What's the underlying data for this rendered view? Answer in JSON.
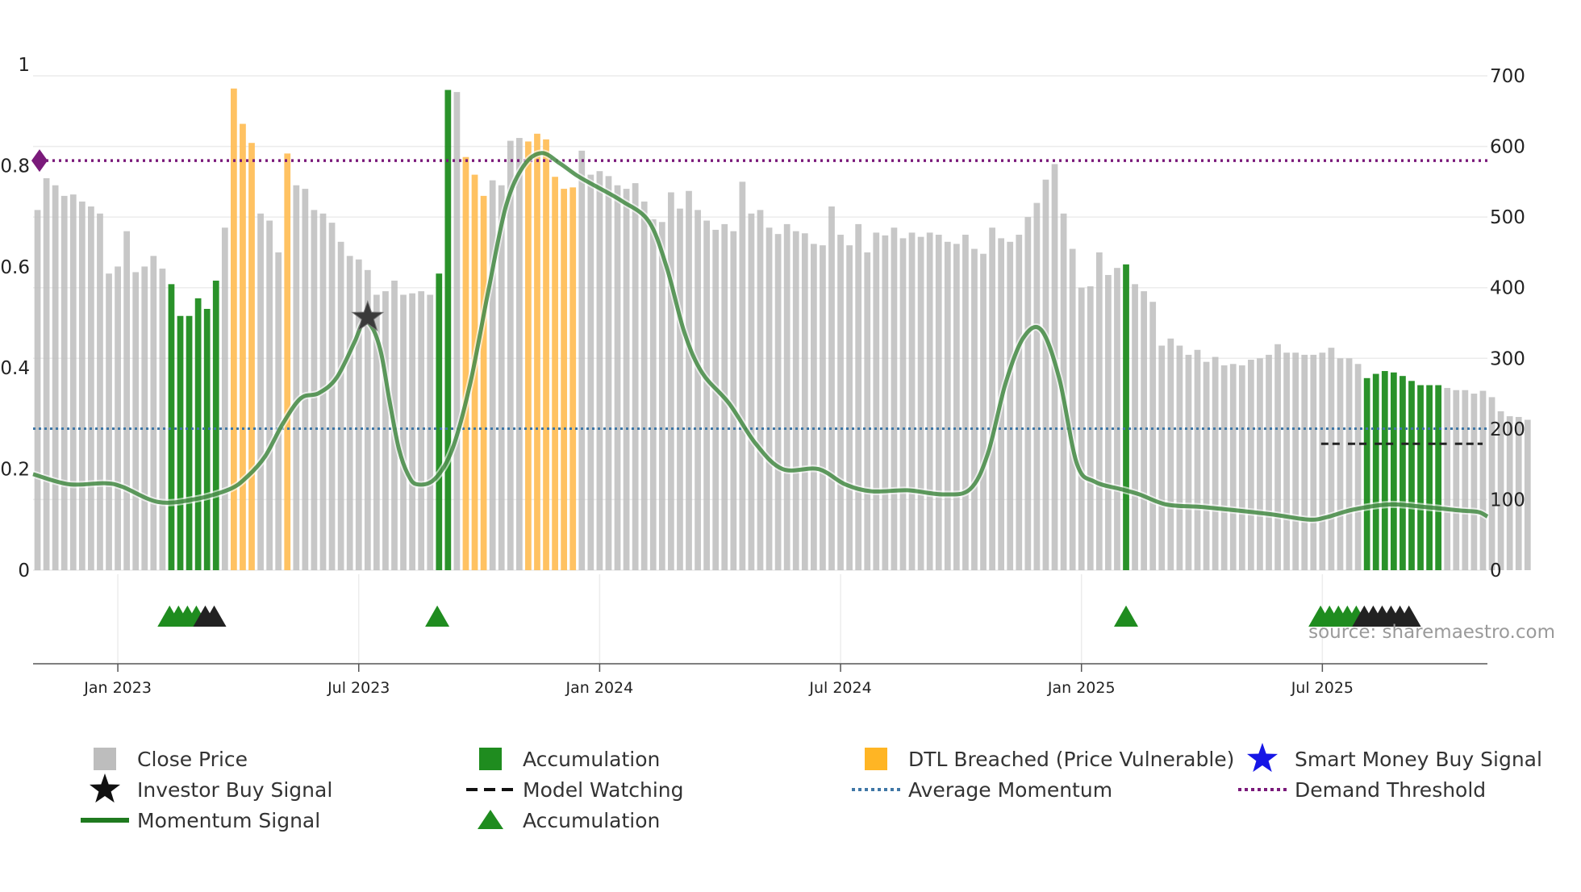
{
  "chart_data": {
    "type": "bar",
    "title": "",
    "xlabel": "",
    "ylabel_left": "",
    "ylabel_right": "",
    "left_axis": {
      "range": [
        0,
        1
      ],
      "ticks": [
        0,
        0.2,
        0.4,
        0.6,
        0.8,
        1
      ],
      "tick_labels": [
        "0",
        "0.2",
        "0.4",
        "0.6",
        "0.8",
        "1"
      ]
    },
    "right_axis": {
      "range": [
        0,
        700
      ],
      "ticks": [
        0,
        100,
        200,
        300,
        400,
        500,
        600,
        700
      ],
      "tick_labels": [
        "0",
        "100",
        "200",
        "300",
        "400",
        "500",
        "600",
        "700"
      ]
    },
    "x_range": [
      0,
      163
    ],
    "x_ticks": [
      {
        "index": 9.5,
        "label": "Jan 2023"
      },
      {
        "index": 36.5,
        "label": "Jul 2023"
      },
      {
        "index": 63.5,
        "label": "Jan 2024"
      },
      {
        "index": 90.5,
        "label": "Jul 2024"
      },
      {
        "index": 117.5,
        "label": "Jan 2025"
      },
      {
        "index": 144.5,
        "label": "Jul 2025"
      }
    ],
    "close_price": [
      510,
      555,
      545,
      530,
      532,
      522,
      515,
      505,
      420,
      430,
      480,
      422,
      430,
      445,
      427,
      405,
      360,
      360,
      385,
      370,
      410,
      485,
      682,
      632,
      605,
      505,
      495,
      450,
      590,
      545,
      540,
      510,
      505,
      492,
      465,
      445,
      440,
      425,
      390,
      395,
      410,
      390,
      392,
      395,
      390,
      420,
      680,
      677,
      585,
      560,
      530,
      552,
      545,
      608,
      612,
      607,
      618,
      610,
      557,
      540,
      542,
      594,
      560,
      565,
      558,
      545,
      540,
      548,
      522,
      497,
      493,
      535,
      512,
      537,
      510,
      495,
      482,
      490,
      480,
      550,
      505,
      510,
      485,
      476,
      490,
      480,
      477,
      462,
      460,
      515,
      475,
      460,
      490,
      450,
      478,
      474,
      485,
      470,
      478,
      472,
      478,
      475,
      465,
      462,
      475,
      455,
      448,
      485,
      470,
      465,
      475,
      500,
      520,
      553,
      575,
      505,
      455,
      400,
      402,
      450,
      418,
      428,
      433,
      405,
      395,
      380,
      318,
      328,
      318,
      305,
      312,
      295,
      302,
      290,
      292,
      290,
      298,
      300,
      305,
      320,
      308,
      308,
      305,
      305,
      308,
      315,
      300,
      300,
      292,
      272,
      278,
      282,
      280,
      275,
      268,
      262,
      262,
      262,
      258,
      255,
      255,
      250,
      254,
      245,
      225,
      218,
      217,
      213
    ],
    "bar_state": [
      "gray",
      "gray",
      "gray",
      "gray",
      "gray",
      "gray",
      "gray",
      "gray",
      "gray",
      "gray",
      "gray",
      "gray",
      "gray",
      "gray",
      "gray",
      "green",
      "green",
      "green",
      "green",
      "green",
      "green",
      "gray",
      "orange",
      "orange",
      "orange",
      "gray",
      "gray",
      "gray",
      "orange",
      "gray",
      "gray",
      "gray",
      "gray",
      "gray",
      "gray",
      "gray",
      "gray",
      "gray",
      "gray",
      "gray",
      "gray",
      "gray",
      "gray",
      "gray",
      "gray",
      "green",
      "green",
      "gray",
      "orange",
      "orange",
      "orange",
      "gray",
      "gray",
      "gray",
      "gray",
      "orange",
      "orange",
      "orange",
      "orange",
      "orange",
      "orange",
      "gray",
      "gray",
      "gray",
      "gray",
      "gray",
      "gray",
      "gray",
      "gray",
      "gray",
      "gray",
      "gray",
      "gray",
      "gray",
      "gray",
      "gray",
      "gray",
      "gray",
      "gray",
      "gray",
      "gray",
      "gray",
      "gray",
      "gray",
      "gray",
      "gray",
      "gray",
      "gray",
      "gray",
      "gray",
      "gray",
      "gray",
      "gray",
      "gray",
      "gray",
      "gray",
      "gray",
      "gray",
      "gray",
      "gray",
      "gray",
      "gray",
      "gray",
      "gray",
      "gray",
      "gray",
      "gray",
      "gray",
      "gray",
      "gray",
      "gray",
      "gray",
      "gray",
      "gray",
      "gray",
      "gray",
      "gray",
      "gray",
      "gray",
      "gray",
      "gray",
      "gray",
      "green",
      "gray",
      "gray",
      "gray",
      "gray",
      "gray",
      "gray",
      "gray",
      "gray",
      "gray",
      "gray",
      "gray",
      "gray",
      "gray",
      "gray",
      "gray",
      "gray",
      "gray",
      "gray",
      "gray",
      "gray",
      "gray",
      "gray",
      "gray",
      "gray",
      "gray",
      "gray",
      "green",
      "green",
      "green",
      "green",
      "green",
      "green",
      "green",
      "green",
      "green",
      "gray",
      "gray",
      "gray",
      "gray",
      "gray",
      "gray",
      "gray",
      "gray",
      "gray",
      "gray"
    ],
    "momentum_signal": [
      [
        0,
        0.19
      ],
      [
        4,
        0.17
      ],
      [
        8,
        0.172
      ],
      [
        10,
        0.165
      ],
      [
        14,
        0.135
      ],
      [
        18,
        0.14
      ],
      [
        22,
        0.16
      ],
      [
        24,
        0.185
      ],
      [
        26,
        0.225
      ],
      [
        28,
        0.29
      ],
      [
        30,
        0.34
      ],
      [
        32,
        0.35
      ],
      [
        34,
        0.38
      ],
      [
        36,
        0.45
      ],
      [
        37,
        0.49
      ],
      [
        38,
        0.48
      ],
      [
        39,
        0.43
      ],
      [
        40,
        0.33
      ],
      [
        41,
        0.24
      ],
      [
        42,
        0.19
      ],
      [
        43,
        0.17
      ],
      [
        45,
        0.18
      ],
      [
        47,
        0.24
      ],
      [
        49,
        0.37
      ],
      [
        51,
        0.55
      ],
      [
        53,
        0.72
      ],
      [
        55,
        0.8
      ],
      [
        57,
        0.825
      ],
      [
        59,
        0.805
      ],
      [
        61,
        0.78
      ],
      [
        63,
        0.76
      ],
      [
        66,
        0.73
      ],
      [
        69,
        0.69
      ],
      [
        71,
        0.6
      ],
      [
        73,
        0.47
      ],
      [
        75,
        0.39
      ],
      [
        78,
        0.33
      ],
      [
        81,
        0.25
      ],
      [
        84,
        0.2
      ],
      [
        88,
        0.2
      ],
      [
        91,
        0.17
      ],
      [
        94,
        0.156
      ],
      [
        98,
        0.158
      ],
      [
        102,
        0.15
      ],
      [
        105,
        0.16
      ],
      [
        107,
        0.23
      ],
      [
        109,
        0.37
      ],
      [
        111,
        0.46
      ],
      [
        113,
        0.475
      ],
      [
        115,
        0.38
      ],
      [
        117,
        0.21
      ],
      [
        119,
        0.175
      ],
      [
        122,
        0.16
      ],
      [
        124,
        0.15
      ],
      [
        127,
        0.13
      ],
      [
        131,
        0.125
      ],
      [
        135,
        0.118
      ],
      [
        139,
        0.11
      ],
      [
        143,
        0.1
      ],
      [
        145,
        0.105
      ],
      [
        148,
        0.12
      ],
      [
        152,
        0.13
      ],
      [
        156,
        0.125
      ],
      [
        160,
        0.118
      ],
      [
        162,
        0.115
      ],
      [
        163,
        0.106
      ]
    ],
    "average_momentum": 0.28,
    "demand_threshold": 0.81,
    "model_watching_level": 0.25,
    "model_watching_segments": [
      [
        144,
        147
      ],
      [
        147,
        150
      ],
      [
        150,
        153
      ],
      [
        153,
        156
      ],
      [
        156,
        159
      ],
      [
        159,
        163
      ]
    ],
    "accumulation_markers": [
      15.3,
      16.3,
      17.3,
      18.3,
      45.3,
      122.5,
      144.3,
      145.3,
      146.3,
      147.3,
      148.3
    ],
    "investor_buy_markers": [
      19.3,
      20.3,
      149.2,
      150.2,
      151.2,
      152.2,
      153.2,
      154.2
    ],
    "investor_buy_star": {
      "index": 37.5,
      "value": 0.5
    },
    "smart_money_buy_markers": [],
    "demand_threshold_marker": "left-edge diamond",
    "legend_position": "bottom",
    "colors": {
      "close_price": "#bdbdbd",
      "accumulation": "#1f8c1f",
      "dtl_breached": "#ffbf5a",
      "momentum": "#2a7a2a",
      "average_momentum": "#3f77a6",
      "demand_threshold": "#7a1a7a",
      "smart_money": "#1616e6",
      "investor_buy": "#222222",
      "model_watching": "#222222"
    },
    "legend": [
      {
        "name": "legend-close-price",
        "label": "Close Price",
        "symbol": "square",
        "color": "#bdbdbd"
      },
      {
        "name": "legend-accumulation-bar",
        "label": "Accumulation",
        "symbol": "square",
        "color": "#1f8c1f"
      },
      {
        "name": "legend-dtl-breached",
        "label": "DTL Breached (Price Vulnerable)",
        "symbol": "square",
        "color": "#ffb524"
      },
      {
        "name": "legend-smart-money",
        "label": "Smart Money Buy Signal",
        "symbol": "star",
        "color": "#1616e6"
      },
      {
        "name": "legend-investor-buy",
        "label": "Investor Buy Signal",
        "symbol": "star",
        "color": "#111111"
      },
      {
        "name": "legend-model-watching",
        "label": "Model Watching",
        "symbol": "dash",
        "color": "#111111"
      },
      {
        "name": "legend-average-momentum",
        "label": "Average Momentum",
        "symbol": "dot",
        "color": "#3f77a6"
      },
      {
        "name": "legend-demand-threshold",
        "label": "Demand Threshold",
        "symbol": "dot",
        "color": "#7a1a7a"
      },
      {
        "name": "legend-momentum-signal",
        "label": "Momentum Signal",
        "symbol": "line",
        "color": "#1f7a1f"
      },
      {
        "name": "legend-accumulation-marker",
        "label": "Accumulation",
        "symbol": "triangle",
        "color": "#1f8c1f"
      }
    ],
    "watermark": "source: sharemaestro.com"
  }
}
